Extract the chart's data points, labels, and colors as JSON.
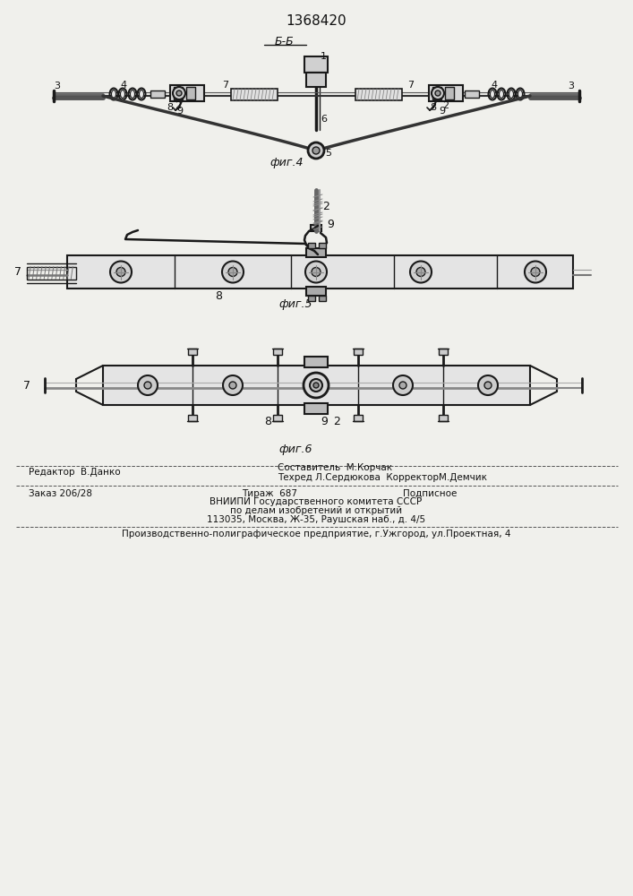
{
  "patent_number": "1368420",
  "bg_color": "#f0f0ec",
  "line_color": "#1a1a1a",
  "fig4_label": "фиг.4",
  "fig5_label": "фиг.5",
  "fig6_label": "фиг.6",
  "section_label": "Б-Б",
  "editor_line": "Редактор  В.Данко",
  "composer_line": "Составитель  М.Корчак",
  "techred_line": "Техред Л.Сердюкова  КорректорМ.Демчик",
  "order_line": "Заказ 206/28",
  "tirazh_line": "Тираж  687",
  "podpisnoe_line": "Подписное",
  "vniip_line1": "ВНИИПИ Государственного комитета СССР",
  "vniip_line2": "по делам изобретений и открытий",
  "vniip_line3": "113035, Москва, Ж-35, Раушская наб., д. 4/5",
  "prod_line": "Производственно-полиграфическое предприятие, г.Ужгород, ул.Проектная, 4",
  "text_color": "#111111"
}
